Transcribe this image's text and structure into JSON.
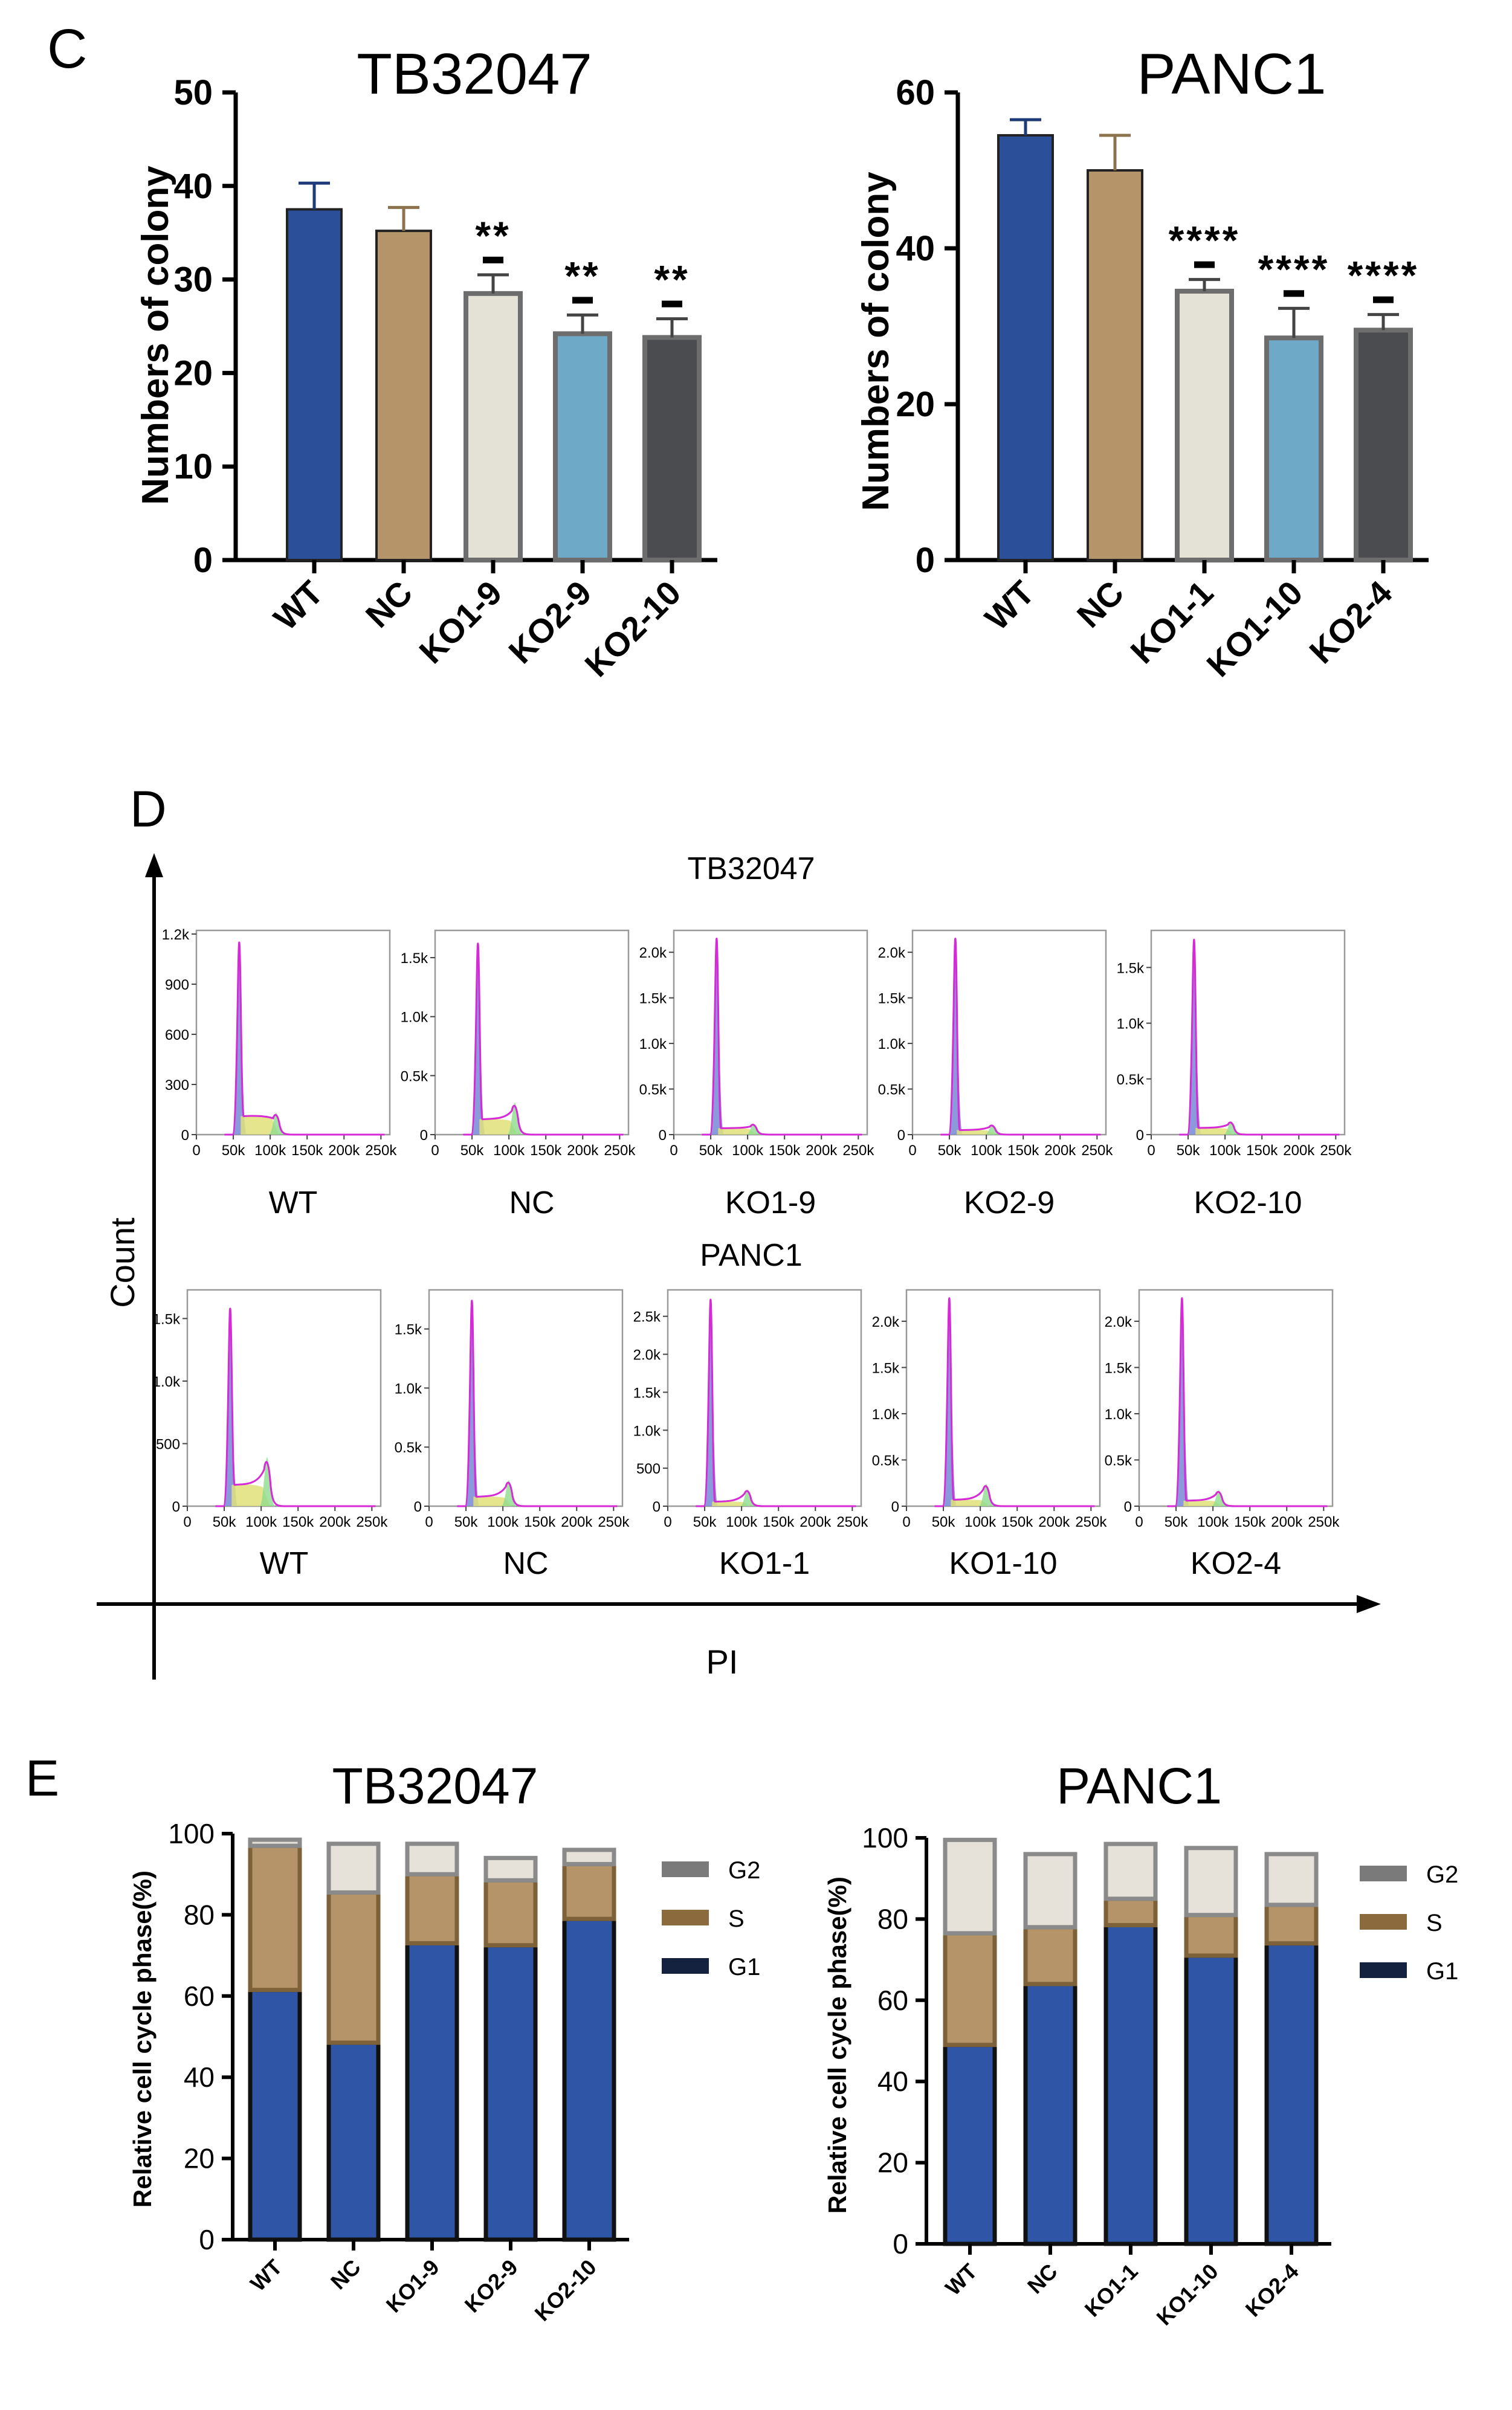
{
  "panel_labels": {
    "c": "C",
    "d": "D",
    "e": "E"
  },
  "colors": {
    "WT": "#2c4f9a",
    "NC": "#b49468",
    "KO_a": "#e4e1d7",
    "KO_b": "#6fa9c8",
    "KO_c": "#4a4c50",
    "g1": "#2f56a6",
    "s": "#b49468",
    "g2": "#e6e2d9",
    "g1_legend": "#14213f",
    "s_legend": "#8b6a3e",
    "g2_legend": "#7a7a7a",
    "flow_line": "#d62ad6",
    "flow_g1": "#7d8fd6",
    "flow_s": "#e0e07a",
    "flow_g2": "#8fdc8f"
  },
  "chart_data": [
    {
      "type": "bar",
      "title": "TB32047",
      "ylabel": "Numbers of colony",
      "ylim": [
        0,
        50
      ],
      "yticks": [
        "0",
        "10",
        "20",
        "30",
        "40",
        "50"
      ],
      "categories": [
        "WT",
        "NC",
        "KO1-9",
        "KO2-9",
        "KO2-10"
      ],
      "values": [
        37.5,
        35.2,
        28.5,
        24.2,
        23.8
      ],
      "errors": [
        2.8,
        2.5,
        2.0,
        2.0,
        2.0
      ],
      "significance": [
        "",
        "",
        "**",
        "**",
        "**"
      ]
    },
    {
      "type": "bar",
      "title": "PANC1",
      "ylabel": "Numbers of colony",
      "ylim": [
        0,
        60
      ],
      "yticks": [
        "0",
        "20",
        "40",
        "60"
      ],
      "categories": [
        "WT",
        "NC",
        "KO1-1",
        "KO1-10",
        "KO2-4"
      ],
      "values": [
        54.5,
        50.0,
        34.5,
        28.5,
        29.5
      ],
      "errors": [
        2.0,
        4.5,
        1.5,
        3.8,
        2.0
      ],
      "significance": [
        "",
        "",
        "****",
        "****",
        "****"
      ]
    },
    {
      "type": "histogram",
      "title": "TB32047",
      "xlabel": "PI",
      "ylabel": "Count",
      "xticks": [
        "0",
        "50k",
        "100k",
        "150k",
        "200k",
        "250k"
      ],
      "samples": [
        {
          "name": "WT",
          "yticks": [
            "0",
            "300",
            "600",
            "900",
            "1.2k"
          ],
          "ymax": 1200,
          "g1_peak": 1150,
          "g2_peak": 130,
          "s_level": 110
        },
        {
          "name": "NC",
          "yticks": [
            "0",
            "0.5k",
            "1.0k",
            "1.5k"
          ],
          "ymax": 1700,
          "g1_peak": 1620,
          "g2_peak": 270,
          "s_level": 130
        },
        {
          "name": "KO1-9",
          "yticks": [
            "0",
            "0.5k",
            "1.0k",
            "1.5k",
            "2.0k"
          ],
          "ymax": 2200,
          "g1_peak": 2150,
          "g2_peak": 120,
          "s_level": 70
        },
        {
          "name": "KO2-9",
          "yticks": [
            "0",
            "0.5k",
            "1.0k",
            "1.5k",
            "2.0k"
          ],
          "ymax": 2200,
          "g1_peak": 2150,
          "g2_peak": 110,
          "s_level": 50
        },
        {
          "name": "KO2-10",
          "yticks": [
            "0",
            "0.5k",
            "1.0k",
            "1.5k"
          ],
          "ymax": 1800,
          "g1_peak": 1750,
          "g2_peak": 120,
          "s_level": 60
        }
      ]
    },
    {
      "type": "histogram",
      "title": "PANC1",
      "xlabel": "PI",
      "ylabel": "Count",
      "xticks": [
        "0",
        "50k",
        "100k",
        "150k",
        "200k",
        "250k"
      ],
      "samples": [
        {
          "name": "WT",
          "yticks": [
            "0",
            "500",
            "1.0k",
            "1.5k"
          ],
          "ymax": 1700,
          "g1_peak": 1580,
          "g2_peak": 390,
          "s_level": 170
        },
        {
          "name": "NC",
          "yticks": [
            "0",
            "0.5k",
            "1.0k",
            "1.5k"
          ],
          "ymax": 1800,
          "g1_peak": 1740,
          "g2_peak": 220,
          "s_level": 80
        },
        {
          "name": "KO1-1",
          "yticks": [
            "0",
            "500",
            "1.0k",
            "1.5k",
            "2.0k",
            "2.5k"
          ],
          "ymax": 2800,
          "g1_peak": 2720,
          "g2_peak": 220,
          "s_level": 60
        },
        {
          "name": "KO1-10",
          "yticks": [
            "0",
            "0.5k",
            "1.0k",
            "1.5k",
            "2.0k"
          ],
          "ymax": 2300,
          "g1_peak": 2250,
          "g2_peak": 240,
          "s_level": 70
        },
        {
          "name": "KO2-4",
          "yticks": [
            "0",
            "0.5k",
            "1.0k",
            "1.5k",
            "2.0k"
          ],
          "ymax": 2300,
          "g1_peak": 2250,
          "g2_peak": 170,
          "s_level": 60
        }
      ]
    },
    {
      "type": "bar",
      "stacked": true,
      "title": "TB32047",
      "ylabel": "Relative cell cycle phase(%)",
      "ylim": [
        0,
        100
      ],
      "yticks": [
        "0",
        "20",
        "40",
        "60",
        "80",
        "100"
      ],
      "categories": [
        "WT",
        "NC",
        "KO1-9",
        "KO2-9",
        "KO2-10"
      ],
      "legend": [
        "G2",
        "S",
        "G1"
      ],
      "series": [
        {
          "name": "G1",
          "values": [
            61.5,
            48.5,
            73,
            72.5,
            79
          ]
        },
        {
          "name": "S",
          "values": [
            35.5,
            37,
            17,
            16,
            13.5
          ]
        },
        {
          "name": "G2",
          "values": [
            1.5,
            12,
            7.5,
            5.5,
            3.5
          ]
        }
      ]
    },
    {
      "type": "bar",
      "stacked": true,
      "title": "PANC1",
      "ylabel": "Relative cell cycle phase(%)",
      "ylim": [
        0,
        100
      ],
      "yticks": [
        "0",
        "20",
        "40",
        "60",
        "80",
        "100"
      ],
      "categories": [
        "WT",
        "NC",
        "KO1-1",
        "KO1-10",
        "KO2-4"
      ],
      "legend": [
        "G2",
        "S",
        "G1"
      ],
      "series": [
        {
          "name": "G1",
          "values": [
            49,
            64,
            78.5,
            71,
            74
          ]
        },
        {
          "name": "S",
          "values": [
            27.5,
            14,
            6.5,
            10,
            9.5
          ]
        },
        {
          "name": "G2",
          "values": [
            23,
            18,
            13.5,
            16.5,
            12.5
          ]
        }
      ]
    }
  ]
}
